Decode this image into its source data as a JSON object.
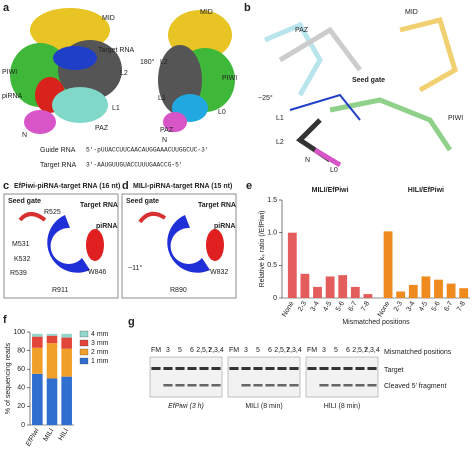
{
  "panel_a": {
    "label": "a",
    "mid": "MID",
    "target_rna": "Target RNA",
    "l2": "L2",
    "piwi": "PIWI",
    "pirna": "piRNA",
    "rotation": "180°",
    "l1": "L1",
    "paz": "PAZ",
    "n": "N",
    "l0": "L0",
    "guide_label": "Guide RNA",
    "guide_seq": "5′-pUUACCUUCAACAUGGAAACUUGGCUC-3′",
    "target_label": "Target RNA",
    "target_seq": "3′-AAUGUUGUACCUUUGAACCG-5′"
  },
  "panel_b": {
    "label": "b",
    "mid": "MID",
    "paz": "PAZ",
    "seed_gate": "Seed gate",
    "angle": "~25°",
    "l1": "L1",
    "l2": "L2",
    "l0": "L0",
    "piwi": "PIWI",
    "n": "N"
  },
  "panel_c": {
    "label": "c",
    "title": "EfPiwi-piRNA-target RNA (16 nt)",
    "seed_gate": "Seed gate",
    "target_rna": "Target RNA",
    "pirna": "piRNA",
    "residues": [
      "R525",
      "M531",
      "K532",
      "R539",
      "W846",
      "R911"
    ]
  },
  "panel_d": {
    "label": "d",
    "title": "MILI-piRNA-target RNA (15 nt)",
    "seed_gate": "Seed gate",
    "target_rna": "Target RNA",
    "pirna": "piRNA",
    "angle": "~11°",
    "residues": [
      "W832",
      "R890"
    ]
  },
  "panel_g": {
    "label": "g",
    "lanes": [
      "FM",
      "3",
      "5",
      "6",
      "2,5,7",
      "2,3,4"
    ],
    "gels": [
      "EfPiwi (3 h)",
      "MILI (8 min)",
      "HILI (8 min)"
    ],
    "row_header": "Mismatched positions",
    "target": "Target",
    "cleaved": "Cleaved 5′ fragment"
  },
  "chart_data": [
    {
      "type": "bar",
      "panel_label": "e",
      "y_label": "Relative kₛ ratio (/EfPiwi)",
      "x_label": "Mismatched positions",
      "ylim": [
        0,
        1.5
      ],
      "yticks": [
        0,
        0.5,
        {
          "value": 1,
          "label": "1.0"
        },
        1.5
      ],
      "groups": [
        {
          "name": "MILI/EfPiwi",
          "color": "#e35d5d",
          "categories": [
            "None",
            "2-3",
            "3-4",
            "4-5",
            "5-6",
            "6-7",
            "7-8"
          ],
          "values": [
            1.0,
            0.37,
            0.17,
            0.33,
            0.35,
            0.17,
            0.06
          ]
        },
        {
          "name": "HILI/EfPiwi",
          "color": "#ee8a1e",
          "categories": [
            "None",
            "2-3",
            "3-4",
            "4-5",
            "5-6",
            "6-7",
            "7-8"
          ],
          "values": [
            1.02,
            0.1,
            0.2,
            0.33,
            0.28,
            0.22,
            0.15
          ]
        }
      ]
    },
    {
      "type": "stacked_bar",
      "panel_label": "f",
      "y_label": "% of sequencing reads",
      "categories": [
        "EfPiwi",
        "MILI",
        "HILI"
      ],
      "ylim": [
        0,
        100
      ],
      "yticks": [
        0,
        20,
        40,
        60,
        80,
        100
      ],
      "series": [
        {
          "name": "1 mm",
          "color": "#2e6fd0",
          "values": [
            55,
            50,
            52
          ]
        },
        {
          "name": "2 mm",
          "color": "#f0a028",
          "values": [
            28,
            38,
            30
          ]
        },
        {
          "name": "3 mm",
          "color": "#e2453a",
          "values": [
            12,
            8,
            12
          ]
        },
        {
          "name": "4 mm",
          "color": "#93d6cc",
          "values": [
            3,
            2,
            4
          ]
        }
      ]
    }
  ]
}
